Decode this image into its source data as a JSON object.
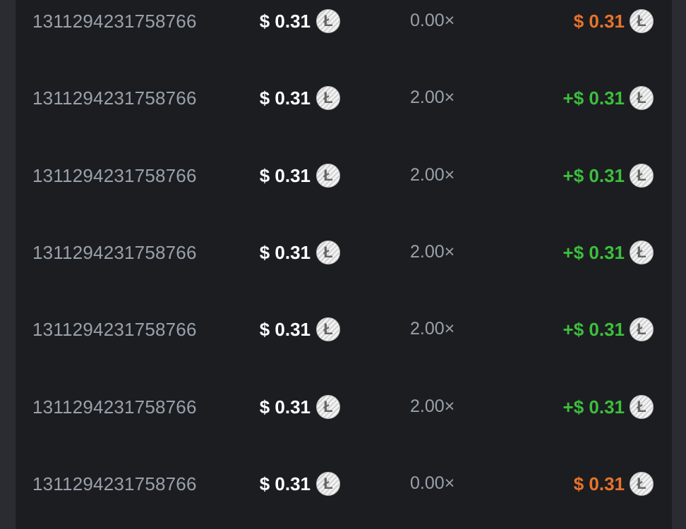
{
  "colors": {
    "win": "#3cbf3c",
    "loss": "#e8732a"
  },
  "coin_icon": "litecoin-icon",
  "rows": [
    {
      "id": "1311294231758766",
      "bet": "$ 0.31",
      "multiplier": "0.00×",
      "payout": "$ 0.31",
      "result": "loss"
    },
    {
      "id": "1311294231758766",
      "bet": "$ 0.31",
      "multiplier": "2.00×",
      "payout": "+$ 0.31",
      "result": "win"
    },
    {
      "id": "1311294231758766",
      "bet": "$ 0.31",
      "multiplier": "2.00×",
      "payout": "+$ 0.31",
      "result": "win"
    },
    {
      "id": "1311294231758766",
      "bet": "$ 0.31",
      "multiplier": "2.00×",
      "payout": "+$ 0.31",
      "result": "win"
    },
    {
      "id": "1311294231758766",
      "bet": "$ 0.31",
      "multiplier": "2.00×",
      "payout": "+$ 0.31",
      "result": "win"
    },
    {
      "id": "1311294231758766",
      "bet": "$ 0.31",
      "multiplier": "2.00×",
      "payout": "+$ 0.31",
      "result": "win"
    },
    {
      "id": "1311294231758766",
      "bet": "$ 0.31",
      "multiplier": "0.00×",
      "payout": "$ 0.31",
      "result": "loss"
    }
  ]
}
